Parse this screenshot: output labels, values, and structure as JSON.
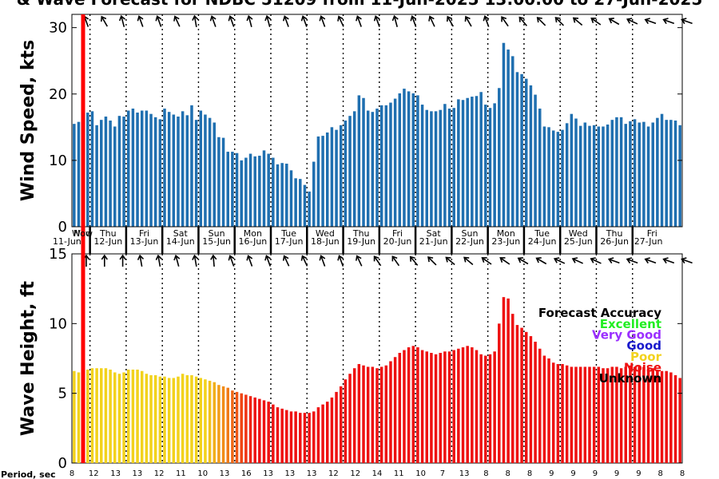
{
  "title": "& Wave Forecast for NDBC 51209 from 11-Jun-2025 13:00:00 to 27-Jun-2025",
  "now_label": "Now",
  "period_label": "Period, sec",
  "legend": {
    "title": "Forecast Accuracy",
    "items": [
      {
        "label": "Excellent",
        "color": "#22ee22"
      },
      {
        "label": "Very Good",
        "color": "#9b30ff"
      },
      {
        "label": "Good",
        "color": "#1a1acc"
      },
      {
        "label": "Poor",
        "color": "#f2d21c"
      },
      {
        "label": "Noise",
        "color": "#ee1111"
      },
      {
        "label": "Unknown",
        "color": "#000000"
      }
    ]
  },
  "days": [
    {
      "dow": "Wed",
      "date": "11-Jun"
    },
    {
      "dow": "Thu",
      "date": "12-Jun"
    },
    {
      "dow": "Fri",
      "date": "13-Jun"
    },
    {
      "dow": "Sat",
      "date": "14-Jun"
    },
    {
      "dow": "Sun",
      "date": "15-Jun"
    },
    {
      "dow": "Mon",
      "date": "16-Jun"
    },
    {
      "dow": "Tue",
      "date": "17-Jun"
    },
    {
      "dow": "Wed",
      "date": "18-Jun"
    },
    {
      "dow": "Thu",
      "date": "19-Jun"
    },
    {
      "dow": "Fri",
      "date": "20-Jun"
    },
    {
      "dow": "Sat",
      "date": "21-Jun"
    },
    {
      "dow": "Sun",
      "date": "22-Jun"
    },
    {
      "dow": "Mon",
      "date": "23-Jun"
    },
    {
      "dow": "Tue",
      "date": "24-Jun"
    },
    {
      "dow": "Wed",
      "date": "25-Jun"
    },
    {
      "dow": "Thu",
      "date": "26-Jun"
    },
    {
      "dow": "Fri",
      "date": "27-Jun"
    }
  ],
  "chart_data": [
    {
      "type": "bar",
      "ylabel": "Wind Speed, kts",
      "ylim": [
        0,
        32
      ],
      "yticks": [
        0,
        10,
        20,
        30
      ],
      "color": "#1f6fb0",
      "interval_hours": 3,
      "values": [
        15.5,
        15.8,
        16.2,
        17.2,
        17.4,
        15.3,
        16.1,
        16.6,
        16.0,
        15.1,
        16.7,
        16.6,
        17.5,
        17.8,
        17.2,
        17.5,
        17.5,
        17.0,
        16.5,
        16.2,
        17.8,
        17.3,
        16.9,
        16.6,
        17.4,
        16.8,
        18.3,
        16.1,
        17.5,
        16.9,
        16.4,
        15.7,
        13.5,
        13.4,
        11.3,
        11.3,
        11.1,
        10.0,
        10.4,
        11.0,
        10.6,
        10.7,
        11.5,
        11.0,
        10.4,
        9.4,
        9.6,
        9.5,
        8.5,
        7.3,
        7.2,
        6.3,
        5.3,
        9.8,
        13.6,
        13.7,
        14.2,
        15.0,
        14.6,
        15.3,
        16.0,
        16.7,
        17.4,
        19.8,
        19.4,
        17.5,
        17.3,
        17.8,
        18.3,
        18.3,
        18.7,
        19.3,
        20.1,
        20.8,
        20.4,
        20.1,
        19.8,
        18.4,
        17.6,
        17.4,
        17.4,
        17.6,
        18.5,
        17.8,
        17.9,
        19.2,
        19.1,
        19.4,
        19.6,
        19.7,
        20.3,
        18.4,
        17.9,
        18.6,
        20.9,
        27.7,
        26.7,
        25.7,
        23.3,
        23.0,
        22.3,
        21.3,
        19.9,
        17.8,
        15.1,
        15.0,
        14.5,
        14.3,
        14.6,
        15.6,
        17.0,
        16.3,
        15.2,
        15.7,
        15.2,
        15.3,
        15.1,
        15.1,
        15.4,
        16.1,
        16.5,
        16.5,
        15.5,
        15.9,
        16.2,
        15.7,
        15.8,
        15.1,
        15.7,
        16.4,
        17.0,
        16.1,
        16.1,
        16.0,
        15.3
      ]
    },
    {
      "type": "bar",
      "ylabel": "Wave Height, ft",
      "ylim": [
        0,
        15
      ],
      "yticks": [
        0,
        5,
        10,
        15
      ],
      "interval_hours": 3,
      "values": [
        6.6,
        6.5,
        6.6,
        6.7,
        6.8,
        6.8,
        6.8,
        6.8,
        6.7,
        6.5,
        6.4,
        6.5,
        6.7,
        6.7,
        6.7,
        6.6,
        6.4,
        6.3,
        6.3,
        6.2,
        6.2,
        6.1,
        6.1,
        6.2,
        6.4,
        6.3,
        6.3,
        6.2,
        6.1,
        6.0,
        5.9,
        5.8,
        5.6,
        5.5,
        5.4,
        5.2,
        5.1,
        5.0,
        4.9,
        4.8,
        4.7,
        4.6,
        4.5,
        4.4,
        4.2,
        4.0,
        3.9,
        3.8,
        3.7,
        3.7,
        3.6,
        3.6,
        3.6,
        3.7,
        4.0,
        4.2,
        4.4,
        4.7,
        5.1,
        5.5,
        6.0,
        6.4,
        6.8,
        7.1,
        7.0,
        6.9,
        6.9,
        6.8,
        6.9,
        7.0,
        7.3,
        7.6,
        7.9,
        8.1,
        8.3,
        8.4,
        8.3,
        8.1,
        8.0,
        7.9,
        7.8,
        7.9,
        8.0,
        8.0,
        8.1,
        8.2,
        8.3,
        8.4,
        8.3,
        8.1,
        7.8,
        7.7,
        7.8,
        8.0,
        10.0,
        11.9,
        11.8,
        10.7,
        9.9,
        9.7,
        9.4,
        9.1,
        8.7,
        8.2,
        7.7,
        7.5,
        7.2,
        7.1,
        7.1,
        7.0,
        6.9,
        6.9,
        6.9,
        6.9,
        6.9,
        6.9,
        6.9,
        6.8,
        6.8,
        6.9,
        6.9,
        6.8,
        6.9,
        7.0,
        6.9,
        7.0,
        6.9,
        6.8,
        6.8,
        6.7,
        6.6,
        6.6,
        6.5,
        6.3,
        6.1
      ],
      "accuracy_sequence": [
        {
          "label": "Poor",
          "count": 30
        },
        {
          "label": "transition",
          "count": 10
        },
        {
          "label": "Noise",
          "count": 89
        }
      ]
    }
  ],
  "periods": [
    "8",
    "12",
    "13",
    "13",
    "12",
    "11",
    "10",
    "13",
    "16",
    "13",
    "13",
    "13",
    "12",
    "12",
    "14",
    "11",
    "10",
    "7",
    "13",
    "8",
    "8",
    "8",
    "9",
    "9",
    "9",
    "9",
    "9",
    "8",
    "8"
  ],
  "wind_arrows_count": 34,
  "wave_arrows_count": 34
}
